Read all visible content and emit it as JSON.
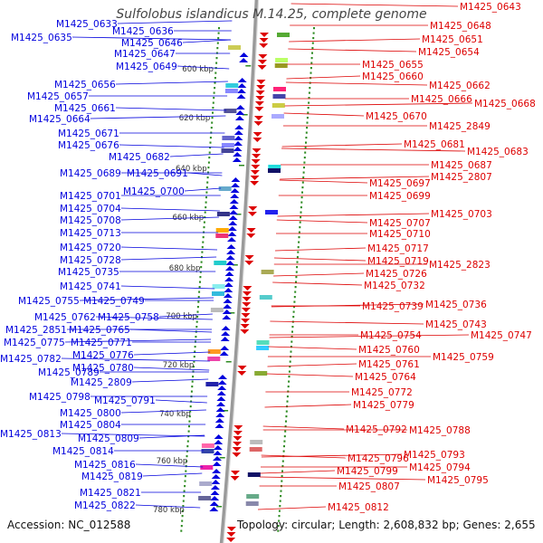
{
  "title": "Sulfolobus islandicus M.14.25, complete genome",
  "accession_label": "Accession: NC_012588",
  "summary_label": "Topology: circular; Length: 2,608,832 bp; Genes: 2,655",
  "colors": {
    "reverse_strand": "#0000dd",
    "forward_strand": "#dd0000",
    "backbone": "#888888",
    "ticks": "#2e8b22"
  },
  "kbp_ticks": [
    "600 kbp",
    "620 kbp",
    "640 kbp",
    "660 kbp",
    "680 kbp",
    "700 kbp",
    "720 kbp",
    "740 kbp",
    "760 kbp",
    "780 kbp"
  ],
  "left_labels": [
    "M1425_0633",
    "M1425_0636",
    "M1425_0635",
    "M1425_0646",
    "M1425_0647",
    "M1425_0649",
    "M1425_0656",
    "M1425_0657",
    "M1425_0661",
    "M1425_0664",
    "M1425_0671",
    "M1425_0676",
    "M1425_0682",
    "M1425_0689",
    "M1425_0691",
    "M1425_0700",
    "M1425_0701",
    "M1425_0704",
    "M1425_0708",
    "M1425_0713",
    "M1425_0720",
    "M1425_0728",
    "M1425_0735",
    "M1425_0741",
    "M1425_0755",
    "M1425_0749",
    "M1425_0762",
    "M1425_0758",
    "M1425_2851",
    "M1425_0765",
    "M1425_0775",
    "M1425_0771",
    "M1425_0782",
    "M1425_0776",
    "M1425_0789",
    "M1425_0780",
    "M1425_2809",
    "M1425_0798",
    "M1425_0791",
    "M1425_0800",
    "M1425_0804",
    "M1425_0813",
    "M1425_0809",
    "M1425_0814",
    "M1425_0816",
    "M1425_0819",
    "M1425_0821",
    "M1425_0822"
  ],
  "right_labels": [
    "M1425_0643",
    "M1425_0648",
    "M1425_0651",
    "M1425_0654",
    "M1425_0655",
    "M1425_0660",
    "M1425_0662",
    "M1425_0666",
    "M1425_0668",
    "M1425_0670",
    "M1425_2849",
    "M1425_0681",
    "M1425_0683",
    "M1425_0687",
    "M1425_2807",
    "M1425_0697",
    "M1425_0699",
    "M1425_0703",
    "M1425_0707",
    "M1425_0710",
    "M1425_0717",
    "M1425_0719",
    "M1425_2823",
    "M1425_0726",
    "M1425_0732",
    "M1425_0739",
    "M1425_0736",
    "M1425_0743",
    "M1425_0754",
    "M1425_0747",
    "M1425_0760",
    "M1425_0759",
    "M1425_0761",
    "M1425_0764",
    "M1425_0772",
    "M1425_0779",
    "M1425_0792",
    "M1425_0788",
    "M1425_0793",
    "M1425_0796",
    "M1425_0794",
    "M1425_0799",
    "M1425_0795",
    "M1425_0807",
    "M1425_0812"
  ]
}
